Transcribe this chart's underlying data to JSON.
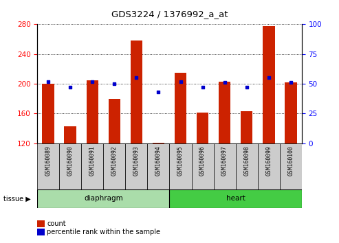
{
  "title": "GDS3224 / 1376992_a_at",
  "samples": [
    "GSM160089",
    "GSM160090",
    "GSM160091",
    "GSM160092",
    "GSM160093",
    "GSM160094",
    "GSM160095",
    "GSM160096",
    "GSM160097",
    "GSM160098",
    "GSM160099",
    "GSM160100"
  ],
  "count_values": [
    200,
    143,
    205,
    180,
    258,
    121,
    215,
    161,
    203,
    163,
    278,
    202
  ],
  "percentile_values": [
    52,
    47,
    52,
    50,
    55,
    43,
    52,
    47,
    51,
    47,
    55,
    51
  ],
  "ymin": 120,
  "ymax": 280,
  "yticks": [
    120,
    160,
    200,
    240,
    280
  ],
  "y2ticks": [
    0,
    25,
    50,
    75,
    100
  ],
  "bar_color": "#CC2200",
  "dot_color": "#0000CC",
  "bar_bottom": 120,
  "legend_items": [
    {
      "label": "count",
      "color": "#CC2200"
    },
    {
      "label": "percentile rank within the sample",
      "color": "#0000CC"
    }
  ],
  "tissue_label": "tissue",
  "background_color": "#ffffff",
  "plot_bg_color": "#ffffff",
  "tick_label_bg": "#cccccc",
  "diaphragm_color": "#aaddaa",
  "heart_color": "#44cc44"
}
